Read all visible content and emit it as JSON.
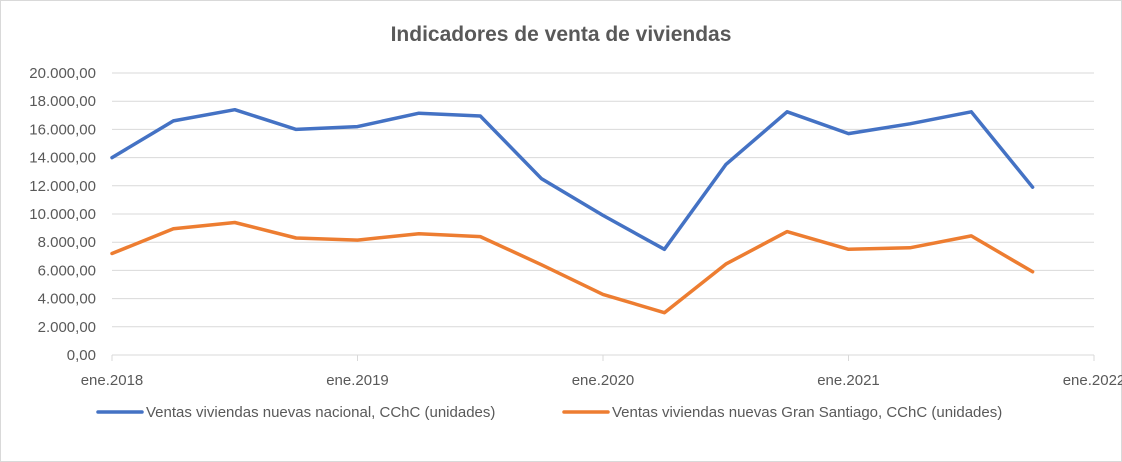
{
  "chart_data": {
    "type": "line",
    "title": "Indicadores de venta de viviendas",
    "xlabel": "",
    "ylabel": "",
    "ylim": [
      0,
      20000
    ],
    "yticks": [
      0,
      2000,
      4000,
      6000,
      8000,
      10000,
      12000,
      14000,
      16000,
      18000,
      20000
    ],
    "ytick_labels": [
      "0,00",
      "2.000,00",
      "4.000,00",
      "6.000,00",
      "8.000,00",
      "10.000,00",
      "12.000,00",
      "14.000,00",
      "16.000,00",
      "18.000,00",
      "20.000,00"
    ],
    "x_tick_labels": [
      "ene.2018",
      "ene.2019",
      "ene.2020",
      "ene.2021",
      "ene.2022"
    ],
    "x": [
      "2018-01",
      "2018-04",
      "2018-07",
      "2018-10",
      "2019-01",
      "2019-04",
      "2019-07",
      "2019-10",
      "2020-01",
      "2020-04",
      "2020-07",
      "2020-10",
      "2021-01",
      "2021-04",
      "2021-07",
      "2021-10"
    ],
    "grid": true,
    "legend_position": "bottom",
    "series": [
      {
        "name": "Ventas viviendas nuevas nacional, CChC (unidades)",
        "color": "#4472C4",
        "values": [
          14000,
          16600,
          17400,
          16000,
          16200,
          17150,
          16950,
          12500,
          9900,
          7500,
          13500,
          17250,
          15700,
          16400,
          17250,
          11900
        ]
      },
      {
        "name": "Ventas viviendas nuevas Gran Santiago, CChC (unidades)",
        "color": "#ED7D31",
        "values": [
          7200,
          8950,
          9400,
          8300,
          8150,
          8600,
          8400,
          6400,
          4300,
          3000,
          6450,
          8750,
          7500,
          7600,
          8450,
          5900
        ]
      }
    ]
  }
}
